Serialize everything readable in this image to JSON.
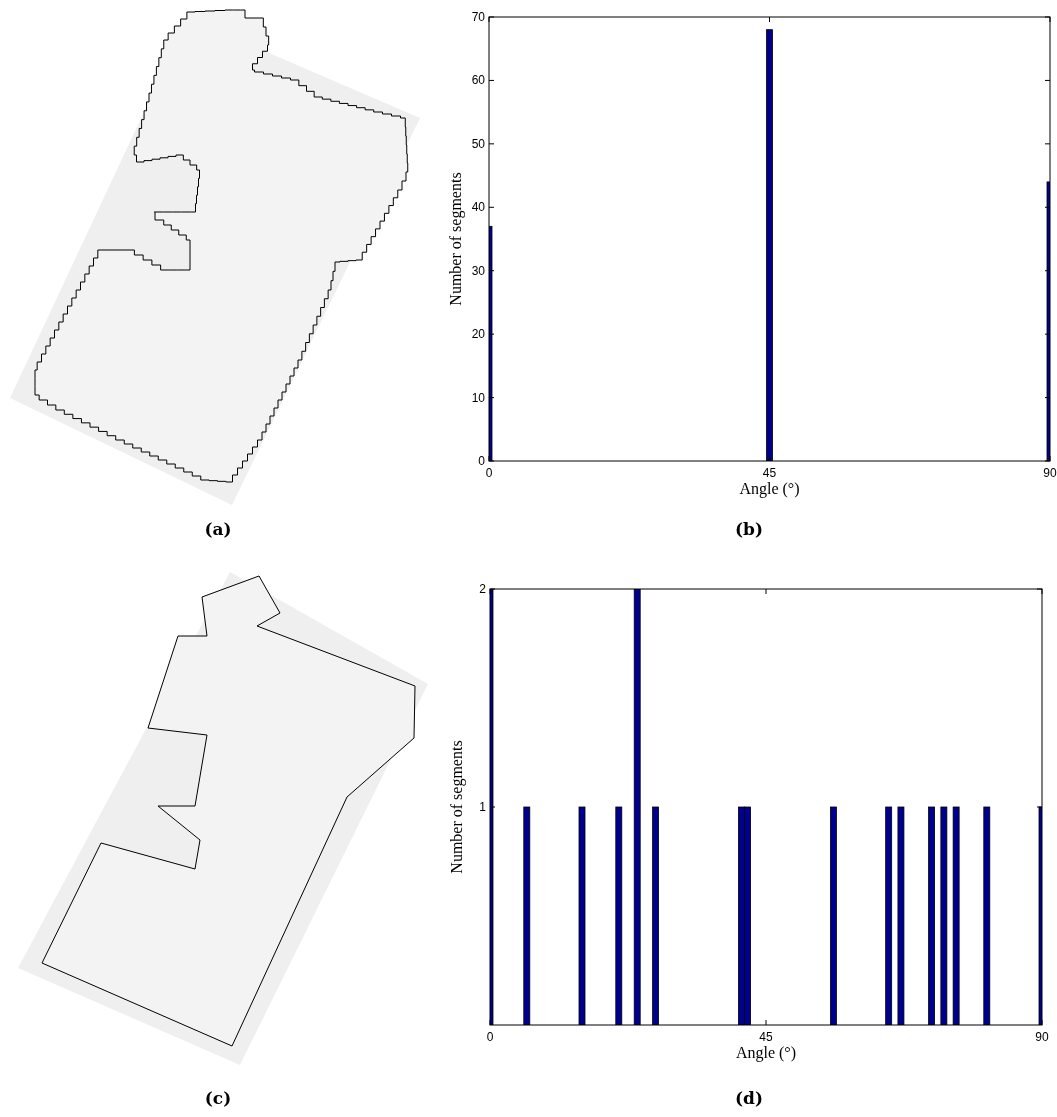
{
  "chart_data": [
    {
      "type": "other",
      "annotations": [
        "(a)"
      ]
    },
    {
      "type": "bar",
      "x": [
        0,
        45,
        90
      ],
      "values": [
        37,
        68,
        44
      ],
      "color": "#00008f",
      "xlim": [
        0,
        90
      ],
      "xticks": [
        0,
        45,
        90
      ],
      "ylim": [
        0,
        70
      ],
      "yticks": [
        0,
        10,
        20,
        30,
        40,
        50,
        60,
        70
      ],
      "xlabel": "Angle (°)",
      "ylabel": "Number of segments",
      "annotations": [
        "(b)"
      ]
    },
    {
      "type": "other",
      "annotations": [
        "(c)"
      ]
    },
    {
      "type": "bar",
      "x": [
        0,
        6,
        15,
        21,
        24,
        27,
        41,
        42,
        56,
        65,
        67,
        72,
        74,
        76,
        81,
        90
      ],
      "values": [
        2,
        1,
        1,
        1,
        2,
        1,
        1,
        1,
        1,
        1,
        1,
        1,
        1,
        1,
        1,
        1
      ],
      "color": "#00008f",
      "xlim": [
        0,
        90
      ],
      "xticks": [
        0,
        45,
        90
      ],
      "ylim": [
        0,
        2
      ],
      "yticks": [
        1,
        2
      ],
      "xlabel": "Angle (°)",
      "ylabel": "Number of segments",
      "annotations": [
        "(d)"
      ]
    }
  ]
}
